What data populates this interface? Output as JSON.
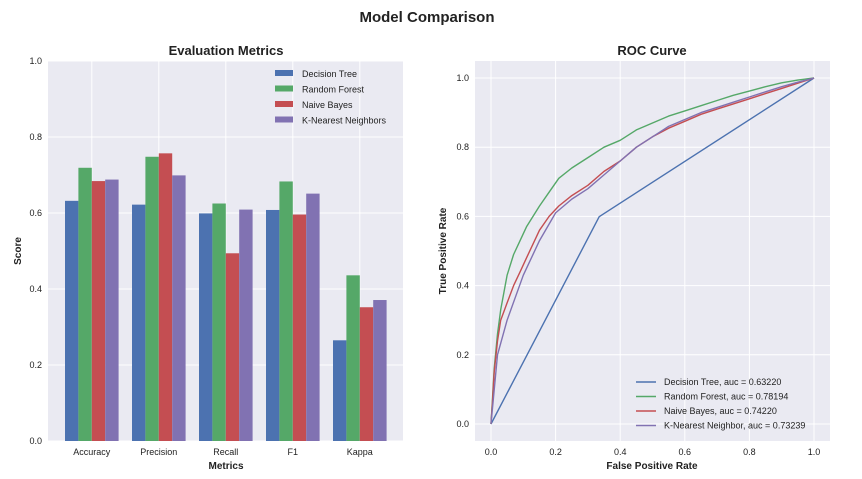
{
  "figure": {
    "title": "Model Comparison"
  },
  "colors": {
    "series": [
      "#4C72B0",
      "#55A868",
      "#C44E52",
      "#8172B2"
    ],
    "panel_bg": "#EAEAF2",
    "grid": "#FFFFFF",
    "text": "#222222"
  },
  "chart_data": [
    {
      "type": "bar",
      "title": "Evaluation Metrics",
      "xlabel": "Metrics",
      "ylabel": "Score",
      "ylim": [
        0,
        1.0
      ],
      "yticks": [
        "0.0",
        "0.2",
        "0.4",
        "0.6",
        "0.8",
        "1.0"
      ],
      "categories": [
        "Accuracy",
        "Precision",
        "Recall",
        "F1",
        "Kappa"
      ],
      "legend_position": "top-right",
      "series": [
        {
          "name": "Decision Tree",
          "values": [
            0.632,
            0.622,
            0.599,
            0.608,
            0.265
          ]
        },
        {
          "name": "Random Forest",
          "values": [
            0.719,
            0.748,
            0.625,
            0.683,
            0.436
          ]
        },
        {
          "name": "Naive Bayes",
          "values": [
            0.684,
            0.757,
            0.494,
            0.596,
            0.352
          ]
        },
        {
          "name": "K-Nearest Neighbors",
          "values": [
            0.688,
            0.699,
            0.609,
            0.651,
            0.371
          ]
        }
      ]
    },
    {
      "type": "line",
      "title": "ROC Curve",
      "xlabel": "False Positive Rate",
      "ylabel": "True Positive Rate",
      "xlim": [
        0,
        1
      ],
      "ylim": [
        0,
        1
      ],
      "xticks": [
        "0.0",
        "0.2",
        "0.4",
        "0.6",
        "0.8",
        "1.0"
      ],
      "yticks": [
        "0.0",
        "0.2",
        "0.4",
        "0.6",
        "0.8",
        "1.0"
      ],
      "legend_position": "bottom-right",
      "series": [
        {
          "name": "Decision Tree, auc = 0.63220",
          "x": [
            0,
            0.335,
            1
          ],
          "y": [
            0,
            0.599,
            1
          ]
        },
        {
          "name": "Random Forest, auc = 0.78194",
          "x": [
            0,
            0.005,
            0.01,
            0.02,
            0.03,
            0.04,
            0.05,
            0.07,
            0.09,
            0.11,
            0.13,
            0.15,
            0.18,
            0.21,
            0.25,
            0.3,
            0.35,
            0.4,
            0.45,
            0.5,
            0.55,
            0.6,
            0.65,
            0.7,
            0.75,
            0.8,
            0.85,
            0.9,
            0.95,
            1.0
          ],
          "y": [
            0,
            0.08,
            0.16,
            0.26,
            0.33,
            0.38,
            0.43,
            0.49,
            0.53,
            0.57,
            0.6,
            0.63,
            0.67,
            0.71,
            0.74,
            0.77,
            0.8,
            0.82,
            0.85,
            0.87,
            0.89,
            0.905,
            0.92,
            0.935,
            0.95,
            0.962,
            0.975,
            0.986,
            0.994,
            1.0
          ]
        },
        {
          "name": "Naive Bayes, auc = 0.74220",
          "x": [
            0,
            0.005,
            0.01,
            0.02,
            0.03,
            0.05,
            0.07,
            0.09,
            0.11,
            0.13,
            0.15,
            0.18,
            0.21,
            0.25,
            0.3,
            0.35,
            0.4,
            0.45,
            0.5,
            0.55,
            0.6,
            0.65,
            0.7,
            0.75,
            0.8,
            0.85,
            0.9,
            0.95,
            1.0
          ],
          "y": [
            0,
            0.07,
            0.15,
            0.24,
            0.3,
            0.35,
            0.4,
            0.44,
            0.48,
            0.52,
            0.56,
            0.6,
            0.63,
            0.66,
            0.69,
            0.73,
            0.76,
            0.8,
            0.83,
            0.855,
            0.875,
            0.895,
            0.91,
            0.925,
            0.94,
            0.955,
            0.97,
            0.985,
            1.0
          ]
        },
        {
          "name": "K-Nearest Neighbor, auc = 0.73239",
          "x": [
            0,
            0.02,
            0.05,
            0.1,
            0.15,
            0.2,
            0.25,
            0.3,
            0.35,
            0.4,
            0.45,
            0.5,
            0.55,
            0.6,
            0.65,
            0.7,
            0.75,
            0.8,
            0.85,
            0.9,
            0.95,
            1.0
          ],
          "y": [
            0,
            0.2,
            0.3,
            0.43,
            0.53,
            0.61,
            0.65,
            0.68,
            0.72,
            0.76,
            0.8,
            0.83,
            0.86,
            0.88,
            0.9,
            0.915,
            0.93,
            0.945,
            0.96,
            0.975,
            0.988,
            1.0
          ]
        }
      ]
    }
  ]
}
